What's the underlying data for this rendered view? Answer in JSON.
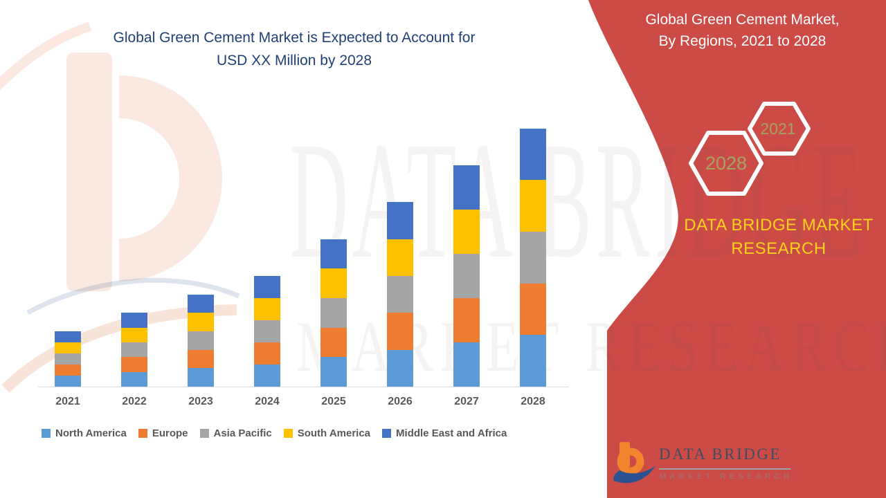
{
  "main_title": {
    "line1": "Global Green Cement Market is Expected to Account for",
    "line2": "USD XX Million by 2028"
  },
  "side_panel": {
    "title_line1": "Global Green Cement Market,",
    "title_line2": "By Regions, 2021 to 2028",
    "hexagons": [
      {
        "label": "2021"
      },
      {
        "label": "2028"
      }
    ],
    "brand_line1": "DATA BRIDGE MARKET",
    "brand_line2": "RESEARCH",
    "accent_red": "#CC4B47",
    "hexagon_label_color": "#A6A262",
    "brand_yellow": "#FFD21C"
  },
  "watermark": {
    "line1": "DATA BRIDGE",
    "line2": "MARKET RESEARCH"
  },
  "logo": {
    "name": "DATA BRIDGE",
    "subtitle": "MARKET RESEARCH"
  },
  "chart_data": {
    "type": "bar",
    "subtype": "stacked-vertical",
    "title": "Global Green Cement Market is Expected to Account for USD XX Million by 2028",
    "categories": [
      "2021",
      "2022",
      "2023",
      "2024",
      "2025",
      "2026",
      "2027",
      "2028"
    ],
    "series": [
      {
        "name": "North America",
        "color": "#5B9BD5",
        "values": [
          6,
          8,
          10,
          12,
          16,
          20,
          24,
          28
        ]
      },
      {
        "name": "Europe",
        "color": "#ED7D31",
        "values": [
          6,
          8,
          10,
          12,
          16,
          20,
          24,
          28
        ]
      },
      {
        "name": "Asia Pacific",
        "color": "#A5A5A5",
        "values": [
          6,
          8,
          10,
          12,
          16,
          20,
          24,
          28
        ]
      },
      {
        "name": "South America",
        "color": "#FFC000",
        "values": [
          6,
          8,
          10,
          12,
          16,
          20,
          24,
          28
        ]
      },
      {
        "name": "Middle East and Africa",
        "color": "#4472C4",
        "values": [
          6,
          8,
          10,
          12,
          16,
          20,
          24,
          28
        ]
      }
    ],
    "stacked_totals": [
      30,
      40,
      50,
      60,
      80,
      100,
      120,
      140
    ],
    "units": "relative index (actual USD values shown as XX, not disclosed)",
    "xlabel": "",
    "ylabel": "",
    "y_axis_visible": false,
    "gridlines": false,
    "legend_position": "bottom"
  }
}
